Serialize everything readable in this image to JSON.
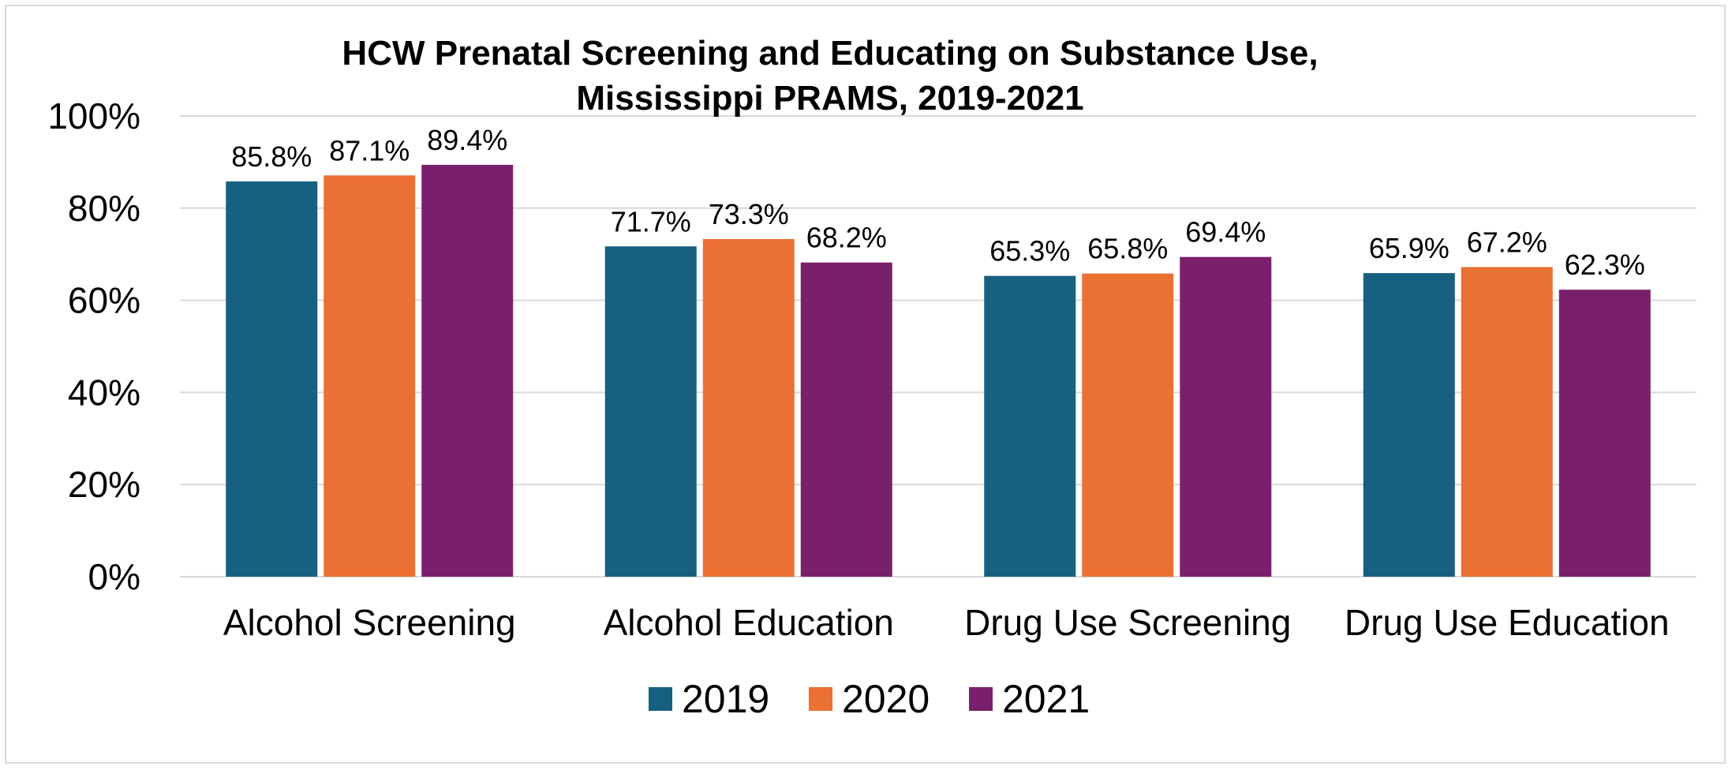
{
  "chart_data": {
    "type": "bar",
    "title_lines": [
      "HCW Prenatal Screening and Educating on Substance Use,",
      "Mississippi PRAMS, 2019-2021"
    ],
    "categories": [
      "Alcohol Screening",
      "Alcohol Education",
      "Drug Use Screening",
      "Drug Use Education"
    ],
    "series": [
      {
        "name": "2019",
        "color": "#17607f",
        "values": [
          85.8,
          71.7,
          65.3,
          65.9
        ],
        "labels": [
          "85.8%",
          "71.7%",
          "65.3%",
          "65.9%"
        ]
      },
      {
        "name": "2020",
        "color": "#eb7033",
        "values": [
          87.1,
          73.3,
          65.8,
          67.2
        ],
        "labels": [
          "87.1%",
          "73.3%",
          "65.8%",
          "67.2%"
        ]
      },
      {
        "name": "2021",
        "color": "#7a1f6c",
        "values": [
          89.4,
          68.2,
          69.4,
          62.3
        ],
        "labels": [
          "89.4%",
          "68.2%",
          "69.4%",
          "62.3%"
        ]
      }
    ],
    "y_ticks": [
      0,
      20,
      40,
      60,
      80,
      100
    ],
    "y_tick_labels": [
      "0%",
      "20%",
      "40%",
      "60%",
      "80%",
      "100%"
    ],
    "ylim": [
      0,
      100
    ],
    "grid": true,
    "legend_position": "bottom"
  }
}
